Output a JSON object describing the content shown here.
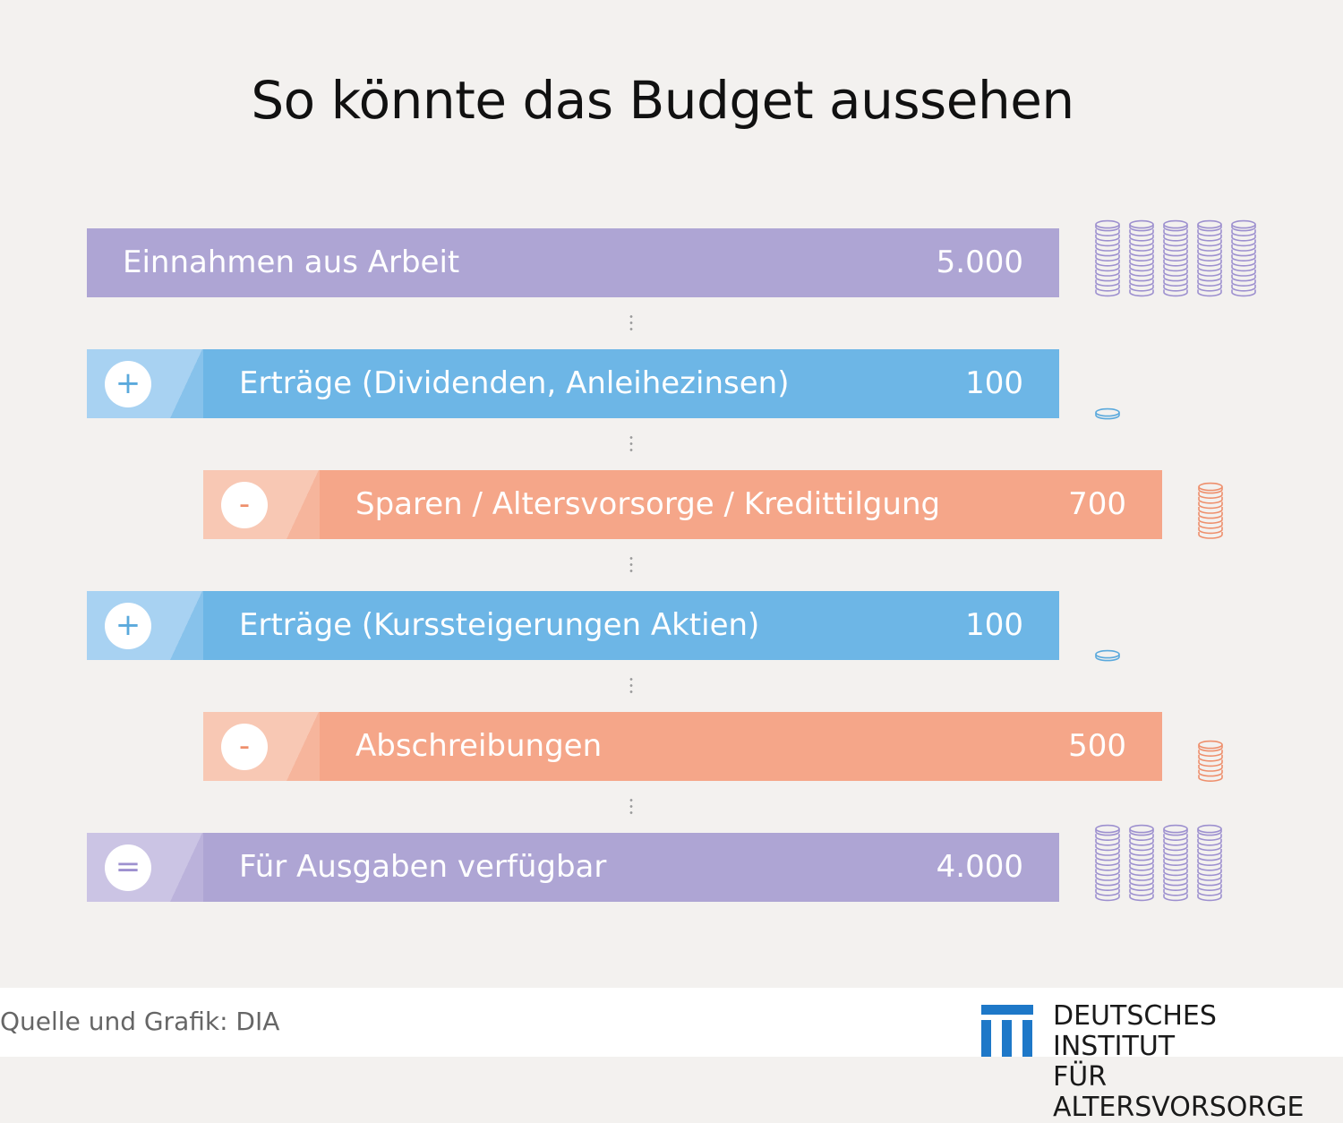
{
  "title": "So könnte das Budget aussehen",
  "rows": [
    {
      "label": "Einnahmen aus Arbeit",
      "value": "5.000",
      "operator": null,
      "kind": "income",
      "coin_stacks": 5,
      "stack_style": "tall"
    },
    {
      "label": "Erträge (Dividenden, Anleihezinsen)",
      "value": "100",
      "operator": "+",
      "kind": "plus",
      "coin_stacks": 1,
      "stack_style": "single"
    },
    {
      "label": "Sparen / Altersvorsorge / Kredittilgung",
      "value": "700",
      "operator": "-",
      "kind": "minus",
      "coin_stacks": 1,
      "stack_style": "medium"
    },
    {
      "label": "Erträge (Kurssteigerungen Aktien)",
      "value": "100",
      "operator": "+",
      "kind": "plus",
      "coin_stacks": 1,
      "stack_style": "single"
    },
    {
      "label": "Abschreibungen",
      "value": "500",
      "operator": "-",
      "kind": "minus",
      "coin_stacks": 1,
      "stack_style": "short"
    },
    {
      "label": "Für Ausgaben verfügbar",
      "value": "4.000",
      "operator": "=",
      "kind": "result",
      "coin_stacks": 4,
      "stack_style": "tall"
    }
  ],
  "colors": {
    "purple": "#aea5d4",
    "purple_light": "#cbc4e4",
    "purple_stroke": "#9d90cf",
    "blue": "#6db6e6",
    "blue_light": "#a8d2f2",
    "blue_stroke": "#5aa9dc",
    "salmon": "#f5a689",
    "salmon_light": "#f8c8b4",
    "salmon_stroke": "#ee8f6c",
    "logo_blue": "#1e78c8"
  },
  "footer": {
    "source": "Quelle und Grafik: DIA",
    "logo_line1": "DEUTSCHES INSTITUT",
    "logo_line2": "FÜR ALTERSVORSORGE"
  }
}
